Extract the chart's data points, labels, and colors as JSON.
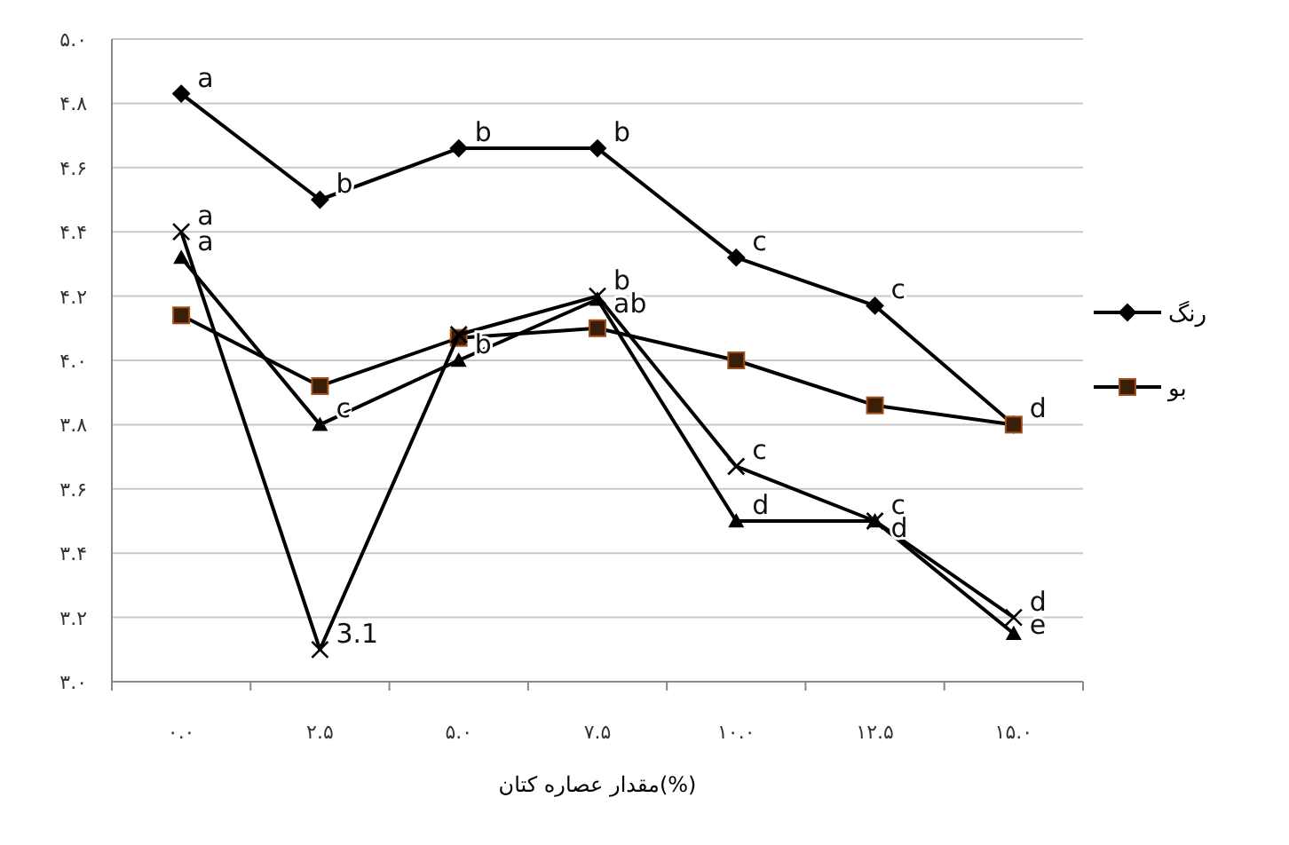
{
  "chart_data": {
    "type": "line",
    "xlabel": "مقدار عصاره کتان(%)",
    "categories": [
      "۰.۰",
      "۲.۵",
      "۵.۰",
      "۷.۵",
      "۱۰.۰",
      "۱۲.۵",
      "۱۵.۰"
    ],
    "ylim": [
      3.0,
      5.0
    ],
    "yticks": [
      {
        "value": 3.0,
        "label": "۳.۰"
      },
      {
        "value": 3.2,
        "label": "۳.۲"
      },
      {
        "value": 3.4,
        "label": "۳.۴"
      },
      {
        "value": 3.6,
        "label": "۳.۶"
      },
      {
        "value": 3.8,
        "label": "۳.۸"
      },
      {
        "value": 4.0,
        "label": "۴.۰"
      },
      {
        "value": 4.2,
        "label": "۴.۲"
      },
      {
        "value": 4.4,
        "label": "۴.۴"
      },
      {
        "value": 4.6,
        "label": "۴.۶"
      },
      {
        "value": 4.8,
        "label": "۴.۸"
      },
      {
        "value": 5.0,
        "label": "۵.۰"
      }
    ],
    "grid": "y",
    "legend": "right",
    "series": [
      {
        "name": "رنگ",
        "color": "#000000",
        "marker": "diamond",
        "values": [
          4.83,
          4.5,
          4.66,
          4.66,
          4.32,
          4.17,
          3.8
        ]
      },
      {
        "name": "بو",
        "color": "#3b1e08",
        "marker": "square",
        "values": [
          4.14,
          3.92,
          4.07,
          4.1,
          4.0,
          3.86,
          3.8
        ]
      },
      {
        "color": "#000000",
        "marker": "cross",
        "values": [
          4.4,
          3.1,
          4.08,
          4.2,
          3.67,
          3.5,
          3.2
        ]
      },
      {
        "color": "#000000",
        "marker": "triangle",
        "values": [
          4.32,
          3.8,
          4.0,
          4.19,
          3.5,
          3.5,
          3.15
        ]
      }
    ],
    "annotations": [
      {
        "text": "a",
        "x": "۰.۰",
        "y": 4.83
      },
      {
        "text": "b",
        "x": "۲.۵",
        "y": 4.5
      },
      {
        "text": "b",
        "x": "۵.۰",
        "y": 4.66
      },
      {
        "text": "b",
        "x": "۷.۵",
        "y": 4.66
      },
      {
        "text": "c",
        "x": "۱۰.۰",
        "y": 4.32
      },
      {
        "text": "c",
        "x": "۱۲.۵",
        "y": 4.17
      },
      {
        "text": "d",
        "x": "۱۵.۰",
        "y": 3.8
      },
      {
        "text": "a",
        "x": "۰.۰",
        "y": 4.4
      },
      {
        "text": "a",
        "x": "۰.۰",
        "y": 4.32
      },
      {
        "text": "c",
        "x": "۲.۵",
        "y": 3.8
      },
      {
        "text": "3.1",
        "x": "۲.۵",
        "y": 3.1
      },
      {
        "text": "b",
        "x": "۵.۰",
        "y": 4.0
      },
      {
        "text": "b",
        "x": "۷.۵",
        "y": 4.2
      },
      {
        "text": "ab",
        "x": "۷.۵",
        "y": 4.19
      },
      {
        "text": "c",
        "x": "۱۰.۰",
        "y": 3.67
      },
      {
        "text": "d",
        "x": "۱۰.۰",
        "y": 3.5
      },
      {
        "text": "c",
        "x": "۱۲.۵",
        "y": 3.5
      },
      {
        "text": "d",
        "x": "۱۲.۵",
        "y": 3.5
      },
      {
        "text": "d",
        "x": "۱۵.۰",
        "y": 3.2
      },
      {
        "text": "e",
        "x": "۱۵.۰",
        "y": 3.15
      }
    ]
  }
}
